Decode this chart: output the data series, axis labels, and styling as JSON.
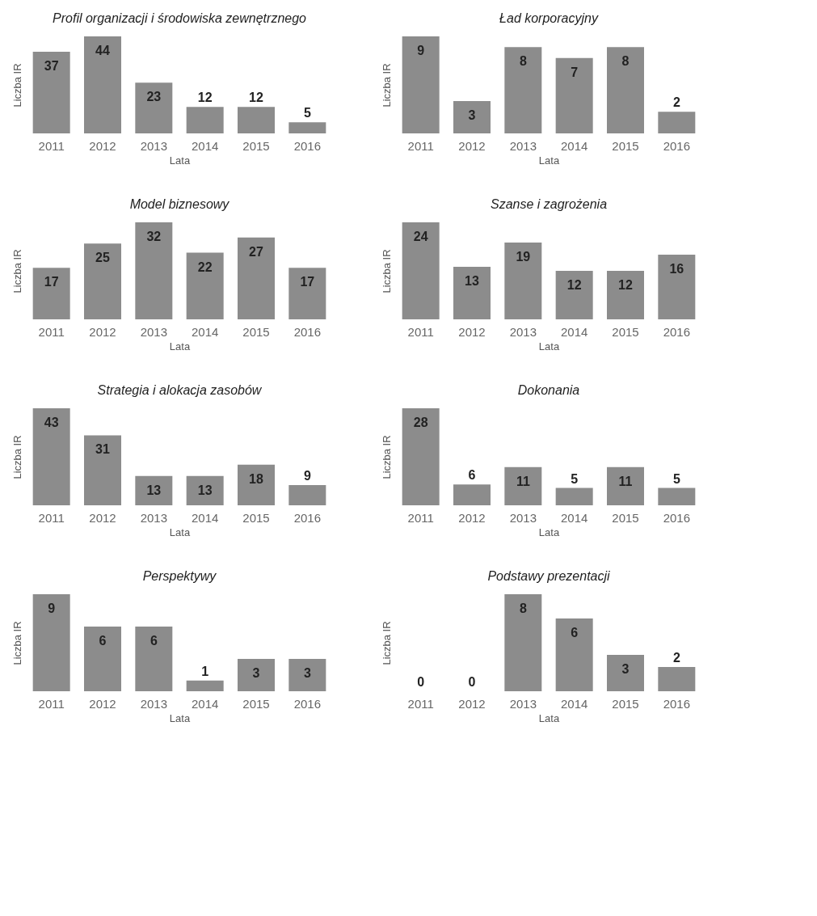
{
  "chart_data": [
    {
      "type": "bar",
      "title": "Profil organizacji i środowiska zewnętrznego",
      "xlabel": "Lata",
      "ylabel": "Liczba IR",
      "categories": [
        "2011",
        "2012",
        "2013",
        "2014",
        "2015",
        "2016"
      ],
      "values": [
        37,
        44,
        23,
        12,
        12,
        5
      ],
      "color": "#8c8c8c",
      "data_labels": true
    },
    {
      "type": "bar",
      "title": "Ład korporacyjny",
      "xlabel": "Lata",
      "ylabel": "Liczba IR",
      "categories": [
        "2011",
        "2012",
        "2013",
        "2014",
        "2015",
        "2016"
      ],
      "values": [
        9,
        3,
        8,
        7,
        8,
        2
      ],
      "color": "#8c8c8c",
      "data_labels": true
    },
    {
      "type": "bar",
      "title": "Model biznesowy",
      "xlabel": "Lata",
      "ylabel": "Liczba IR",
      "categories": [
        "2011",
        "2012",
        "2013",
        "2014",
        "2015",
        "2016"
      ],
      "values": [
        17,
        25,
        32,
        22,
        27,
        17
      ],
      "color": "#8c8c8c",
      "data_labels": true
    },
    {
      "type": "bar",
      "title": "Szanse i zagrożenia",
      "xlabel": "Lata",
      "ylabel": "Liczba IR",
      "categories": [
        "2011",
        "2012",
        "2013",
        "2014",
        "2015",
        "2016"
      ],
      "values": [
        24,
        13,
        19,
        12,
        12,
        16
      ],
      "color": "#8c8c8c",
      "data_labels": true
    },
    {
      "type": "bar",
      "title": "Strategia i alokacja zasobów",
      "xlabel": "Lata",
      "ylabel": "Liczba IR",
      "categories": [
        "2011",
        "2012",
        "2013",
        "2014",
        "2015",
        "2016"
      ],
      "values": [
        43,
        31,
        13,
        13,
        18,
        9
      ],
      "color": "#8c8c8c",
      "data_labels": true
    },
    {
      "type": "bar",
      "title": "Dokonania",
      "xlabel": "Lata",
      "ylabel": "Liczba IR",
      "categories": [
        "2011",
        "2012",
        "2013",
        "2014",
        "2015",
        "2016"
      ],
      "values": [
        28,
        6,
        11,
        5,
        11,
        5
      ],
      "color": "#8c8c8c",
      "data_labels": true
    },
    {
      "type": "bar",
      "title": "Perspektywy",
      "xlabel": "Lata",
      "ylabel": "Liczba IR",
      "categories": [
        "2011",
        "2012",
        "2013",
        "2014",
        "2015",
        "2016"
      ],
      "values": [
        9,
        6,
        6,
        1,
        3,
        3
      ],
      "color": "#8c8c8c",
      "data_labels": true
    },
    {
      "type": "bar",
      "title": "Podstawy prezentacji",
      "xlabel": "Lata",
      "ylabel": "Liczba IR",
      "categories": [
        "2011",
        "2012",
        "2013",
        "2014",
        "2015",
        "2016"
      ],
      "values": [
        0,
        0,
        8,
        6,
        3,
        2
      ],
      "color": "#8c8c8c",
      "data_labels": true
    }
  ]
}
